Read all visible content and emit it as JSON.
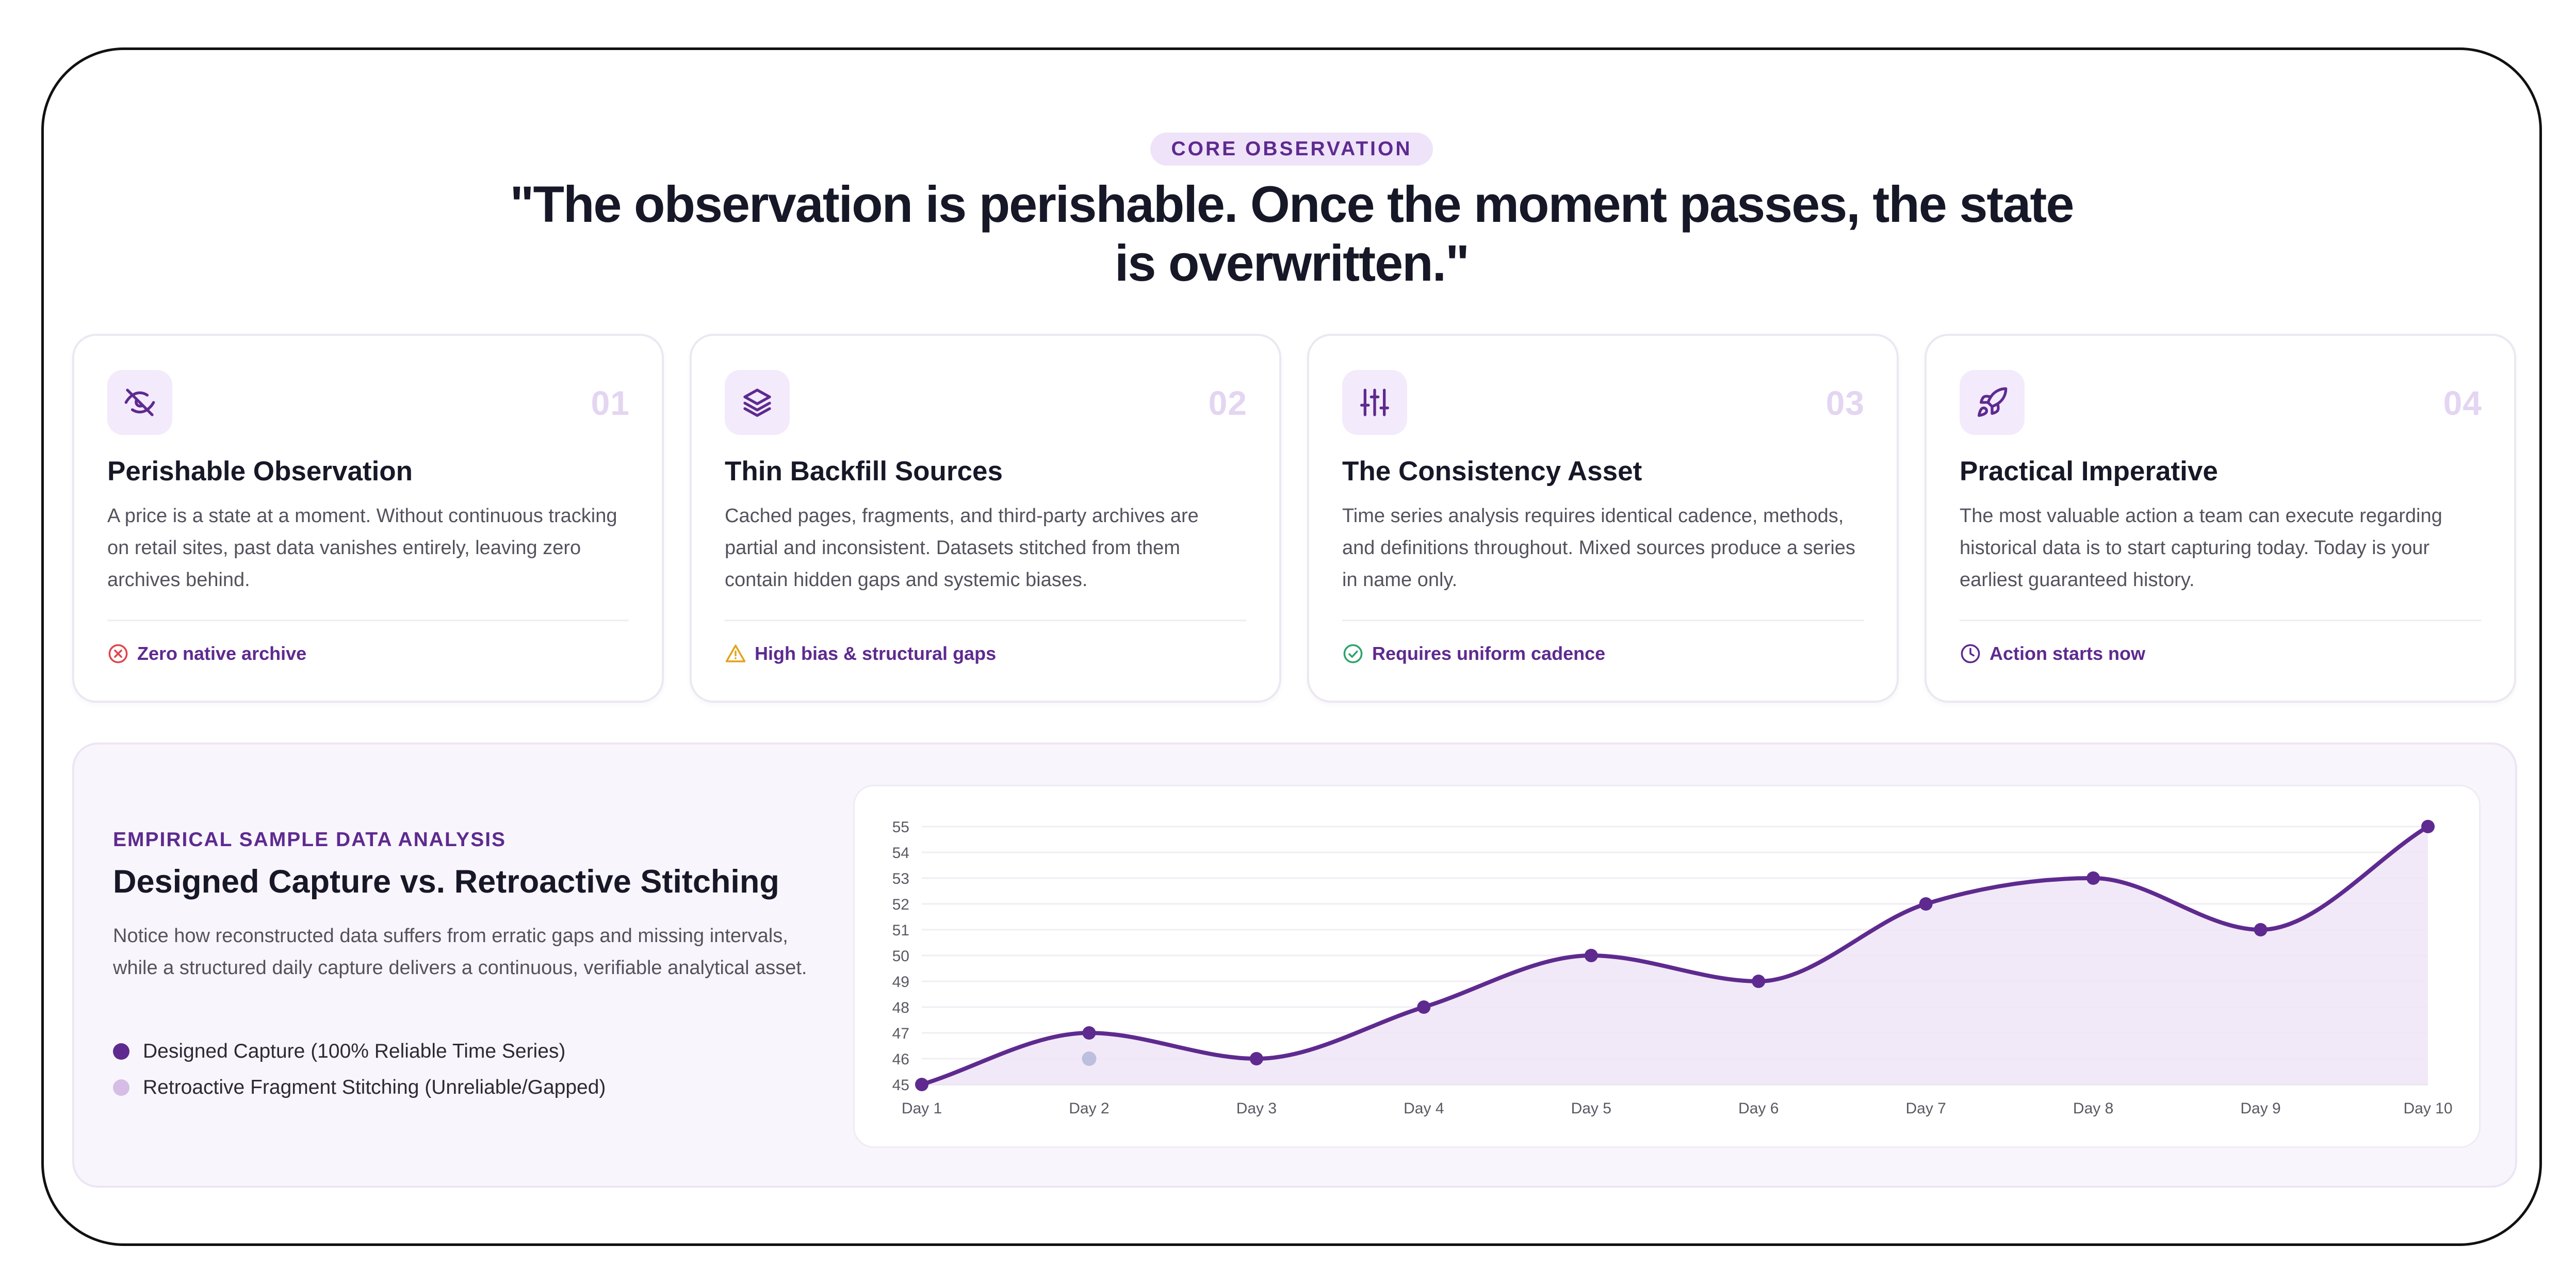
{
  "header": {
    "eyebrow": "CORE OBSERVATION",
    "headline": "\"The observation is perishable. Once the moment passes, the state is overwritten.\""
  },
  "cards": [
    {
      "number": "01",
      "icon": "eye-off-icon",
      "title": "Perishable Observation",
      "body": "A price is a state at a moment. Without continuous tracking on retail sites, past data vanishes entirely, leaving zero archives behind.",
      "tag_icon": "x-circle-icon",
      "tag_color": "#e0454b",
      "tag": "Zero native archive"
    },
    {
      "number": "02",
      "icon": "layers-icon",
      "title": "Thin Backfill Sources",
      "body": "Cached pages, fragments, and third-party archives are partial and inconsistent. Datasets stitched from them contain hidden gaps and systemic biases.",
      "tag_icon": "warning-triangle-icon",
      "tag_color": "#e3a21a",
      "tag": "High bias & structural gaps"
    },
    {
      "number": "03",
      "icon": "sliders-icon",
      "title": "The Consistency Asset",
      "body": "Time series analysis requires identical cadence, methods, and definitions throughout. Mixed sources produce a series in name only.",
      "tag_icon": "check-circle-icon",
      "tag_color": "#2fa36b",
      "tag": "Requires uniform cadence"
    },
    {
      "number": "04",
      "icon": "rocket-icon",
      "title": "Practical Imperative",
      "body": "The most valuable action a team can execute regarding historical data is to start capturing today. Today is your earliest guaranteed history.",
      "tag_icon": "clock-icon",
      "tag_color": "#5e2a8f",
      "tag": "Action starts now"
    }
  ],
  "analysis": {
    "eyebrow": "EMPIRICAL SAMPLE DATA ANALYSIS",
    "title": "Designed Capture vs. Retroactive Stitching",
    "description": "Notice how reconstructed data suffers from erratic gaps and missing intervals, while a structured daily capture delivers a continuous, verifiable analytical asset.",
    "legend": [
      {
        "label": "Designed Capture (100% Reliable Time Series)",
        "color": "#5e2a8f"
      },
      {
        "label": "Retroactive Fragment Stitching (Unreliable/Gapped)",
        "color": "#d6bde6"
      }
    ]
  },
  "chart_data": {
    "type": "line",
    "x": [
      "Day 1",
      "Day 2",
      "Day 3",
      "Day 4",
      "Day 5",
      "Day 6",
      "Day 7",
      "Day 8",
      "Day 9",
      "Day 10"
    ],
    "series": [
      {
        "name": "Designed Capture (100% Reliable Time Series)",
        "values": [
          45,
          47,
          46,
          48,
          50,
          49,
          52,
          53,
          51,
          55
        ],
        "color": "#5e2a8f"
      },
      {
        "name": "Retroactive Fragment Stitching (Unreliable/Gapped)",
        "values": [
          null,
          46,
          null,
          null,
          null,
          null,
          null,
          null,
          null,
          null
        ],
        "color": "#aab0d6"
      }
    ],
    "ylim": [
      45,
      55
    ],
    "yticks": [
      45,
      46,
      47,
      48,
      49,
      50,
      51,
      52,
      53,
      54,
      55
    ],
    "grid": true,
    "xlabel": "",
    "ylabel": ""
  }
}
